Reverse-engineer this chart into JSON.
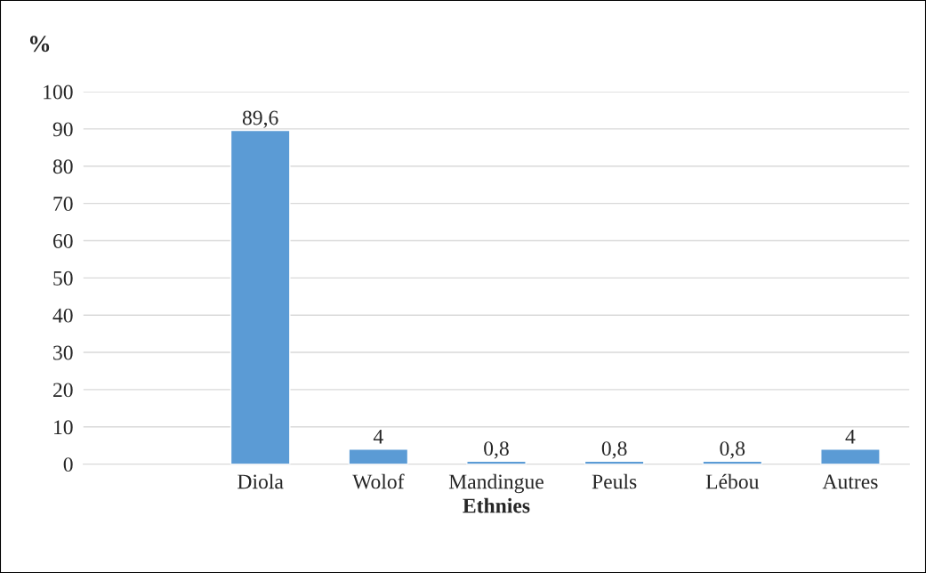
{
  "chart_data": {
    "type": "bar",
    "ylabel": "%",
    "xlabel": "Ethnies",
    "categories": [
      null,
      "Diola",
      "Wolof",
      "Mandingue",
      "Peuls",
      "Lébou",
      "Autres"
    ],
    "values": [
      null,
      89.6,
      4,
      0.8,
      0.8,
      0.8,
      4
    ],
    "value_labels": [
      null,
      "89,6",
      "4",
      "0,8",
      "0,8",
      "0,8",
      "4"
    ],
    "color": "#5b9bd5",
    "ylim": [
      0,
      100
    ],
    "yticks": [
      0,
      10,
      20,
      30,
      40,
      50,
      60,
      70,
      80,
      90,
      100
    ],
    "grid": "y",
    "legend": false
  }
}
